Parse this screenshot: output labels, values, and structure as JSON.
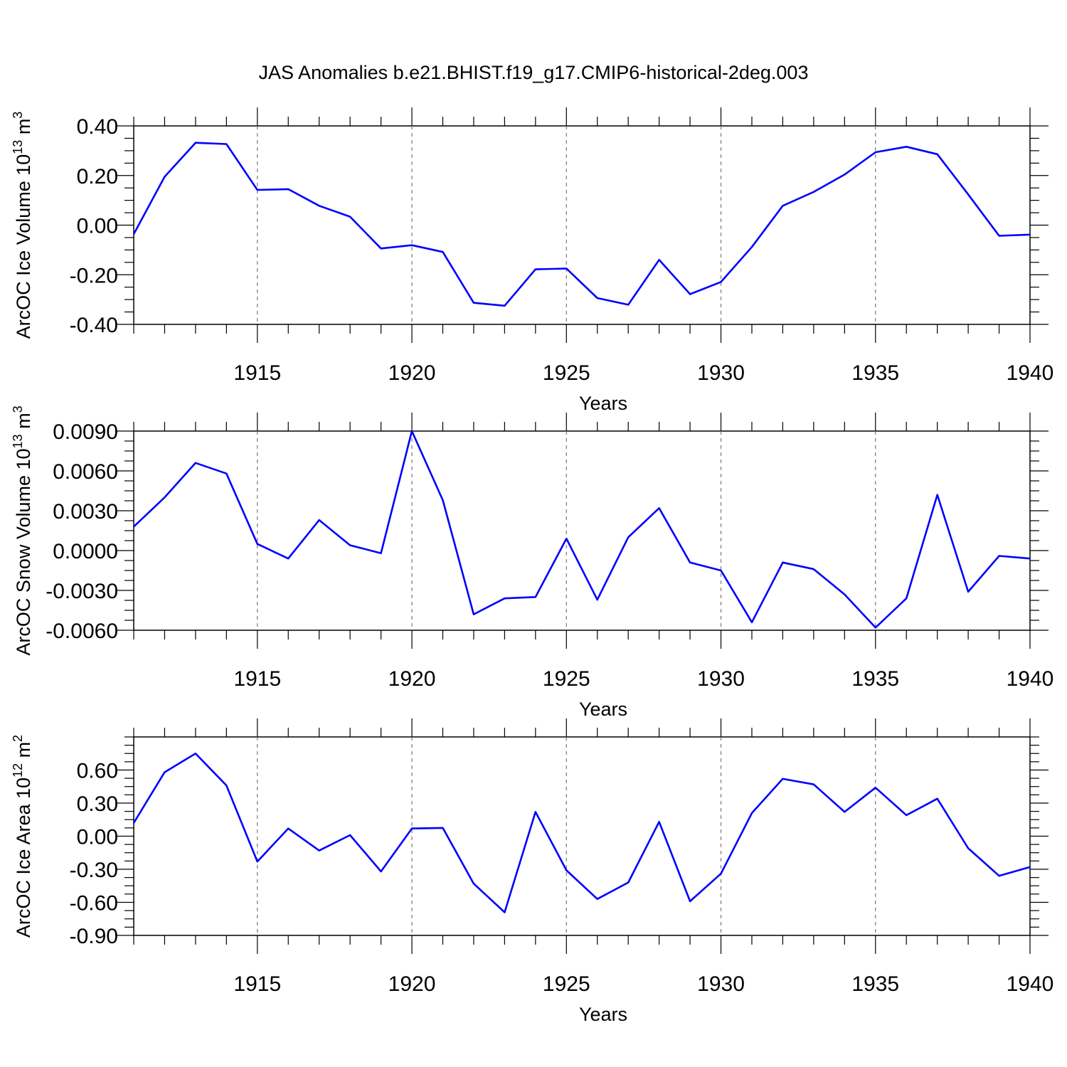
{
  "page": {
    "title": "JAS Anomalies b.e21.BHIST.f19_g17.CMIP6-historical-2deg.003"
  },
  "style": {
    "line_color": "#0000ff",
    "grid_color": "#777777"
  },
  "chart_data": [
    {
      "type": "line",
      "title": "",
      "xlabel": "Years",
      "ylabel": "ArcOC Ice Volume 10",
      "ylabel_exponent": "13",
      "ylabel_unit": "m",
      "ylabel_unit_exponent": "3",
      "xlim": [
        1911,
        1940
      ],
      "ylim": [
        -0.4,
        0.4
      ],
      "x_ticks": [
        1915,
        1920,
        1925,
        1930,
        1935,
        1940
      ],
      "y_ticks": [
        -0.4,
        -0.2,
        0.0,
        0.2,
        0.4
      ],
      "y_tick_labels": [
        "-0.40",
        "-0.20",
        "0.00",
        "0.20",
        "0.40"
      ],
      "grid": "vertical dashed at labeled x ticks",
      "x": [
        1911,
        1912,
        1913,
        1914,
        1915,
        1916,
        1917,
        1918,
        1919,
        1920,
        1921,
        1922,
        1923,
        1924,
        1925,
        1926,
        1927,
        1928,
        1929,
        1930,
        1931,
        1932,
        1933,
        1934,
        1935,
        1936,
        1937,
        1938,
        1939,
        1940
      ],
      "series": [
        {
          "values": [
            -0.036,
            0.195,
            0.332,
            0.327,
            0.142,
            0.145,
            0.078,
            0.034,
            -0.094,
            -0.081,
            -0.108,
            -0.313,
            -0.325,
            -0.178,
            -0.175,
            -0.294,
            -0.321,
            -0.14,
            -0.278,
            -0.229,
            -0.088,
            0.078,
            0.134,
            0.204,
            0.294,
            0.316,
            0.286,
            0.124,
            -0.043,
            -0.038
          ]
        }
      ]
    },
    {
      "type": "line",
      "title": "",
      "xlabel": "Years",
      "ylabel": "ArcOC Snow Volume 10",
      "ylabel_exponent": "13",
      "ylabel_unit": "m",
      "ylabel_unit_exponent": "3",
      "xlim": [
        1911,
        1940
      ],
      "ylim": [
        -0.006,
        0.009
      ],
      "x_ticks": [
        1915,
        1920,
        1925,
        1930,
        1935,
        1940
      ],
      "y_ticks": [
        -0.006,
        -0.003,
        0.0,
        0.003,
        0.006,
        0.009
      ],
      "y_tick_labels": [
        "-0.0060",
        "-0.0030",
        "0.0000",
        "0.0030",
        "0.0060",
        "0.0090"
      ],
      "grid": "vertical dashed at labeled x ticks",
      "x": [
        1911,
        1912,
        1913,
        1914,
        1915,
        1916,
        1917,
        1918,
        1919,
        1920,
        1921,
        1922,
        1923,
        1924,
        1925,
        1926,
        1927,
        1928,
        1929,
        1930,
        1931,
        1932,
        1933,
        1934,
        1935,
        1936,
        1937,
        1938,
        1939,
        1940
      ],
      "series": [
        {
          "values": [
            0.0018,
            0.004,
            0.0066,
            0.0058,
            0.0005,
            -0.0006,
            0.0023,
            0.0004,
            -0.0002,
            0.009,
            0.0038,
            -0.0048,
            -0.0036,
            -0.0035,
            0.0009,
            -0.0037,
            0.001,
            0.0032,
            -0.0009,
            -0.0015,
            -0.0054,
            -0.0009,
            -0.0014,
            -0.0033,
            -0.0058,
            -0.0036,
            0.0042,
            -0.0031,
            -0.0004,
            -0.0006
          ]
        }
      ]
    },
    {
      "type": "line",
      "title": "",
      "xlabel": "Years",
      "ylabel": "ArcOC Ice Area 10",
      "ylabel_exponent": "12",
      "ylabel_unit": "m",
      "ylabel_unit_exponent": "2",
      "xlim": [
        1911,
        1940
      ],
      "ylim": [
        -0.9,
        0.9
      ],
      "x_ticks": [
        1915,
        1920,
        1925,
        1930,
        1935,
        1940
      ],
      "y_ticks": [
        -0.9,
        -0.6,
        -0.3,
        0.0,
        0.3,
        0.6
      ],
      "y_tick_labels": [
        "-0.90",
        "-0.60",
        "-0.30",
        "0.00",
        "0.30",
        "0.60"
      ],
      "grid": "vertical dashed at labeled x ticks",
      "x": [
        1911,
        1912,
        1913,
        1914,
        1915,
        1916,
        1917,
        1918,
        1919,
        1920,
        1921,
        1922,
        1923,
        1924,
        1925,
        1926,
        1927,
        1928,
        1929,
        1930,
        1931,
        1932,
        1933,
        1934,
        1935,
        1936,
        1937,
        1938,
        1939,
        1940
      ],
      "series": [
        {
          "values": [
            0.12,
            0.58,
            0.75,
            0.46,
            -0.23,
            0.07,
            -0.13,
            0.01,
            -0.32,
            0.07,
            0.075,
            -0.43,
            -0.69,
            0.22,
            -0.31,
            -0.57,
            -0.42,
            0.13,
            -0.59,
            -0.34,
            0.21,
            0.52,
            0.47,
            0.22,
            0.44,
            0.19,
            0.34,
            -0.11,
            -0.36,
            -0.28
          ]
        }
      ]
    }
  ]
}
